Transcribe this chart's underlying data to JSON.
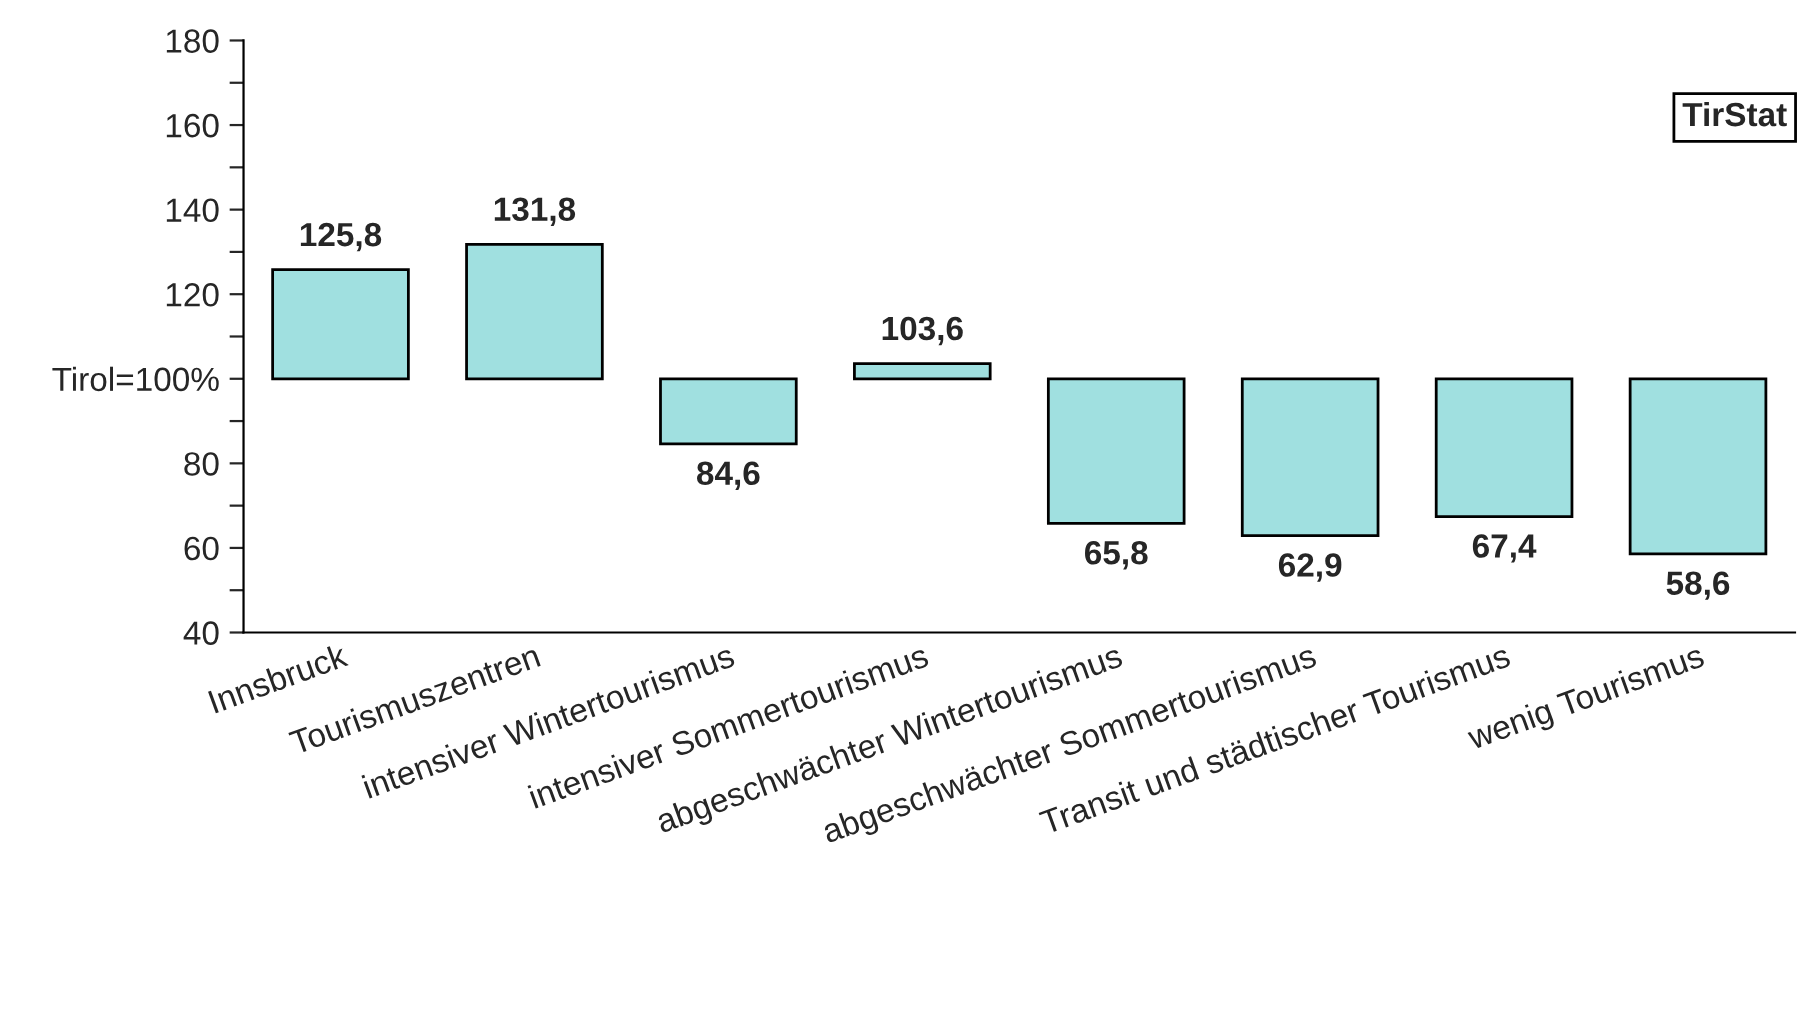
{
  "chart_data": {
    "type": "bar",
    "categories": [
      "Innsbruck",
      "Tourismuszentren",
      "intensiver Wintertourismus",
      "intensiver Sommertourismus",
      "abgeschwächter Wintertourismus",
      "abgeschwächter Sommertourismus",
      "Transit und städtischer Tourismus",
      "wenig Tourismus"
    ],
    "base": [
      100,
      100,
      100,
      100,
      100,
      100,
      100,
      100
    ],
    "values": [
      25.8,
      31.8,
      -15.4,
      3.6,
      -34.2,
      -37.1,
      -32.6,
      -41.4
    ],
    "value_labels": [
      "125,8",
      "131,8",
      "84,6",
      "103,6",
      "65,8",
      "62,9",
      "67,4",
      "58,6"
    ],
    "color": "#a0e0e0",
    "ylim": [
      40,
      180
    ],
    "yticks": [
      40,
      {
        "value": 50,
        "label": null
      },
      60,
      {
        "value": 70,
        "label": null
      },
      80,
      {
        "value": 90,
        "label": null
      },
      {
        "value": 100,
        "label": "Tirol=100%"
      },
      {
        "value": 110,
        "label": null
      },
      120,
      {
        "value": 130,
        "label": null
      },
      140,
      {
        "value": 150,
        "label": null
      },
      160,
      {
        "value": 170,
        "label": null
      },
      180
    ],
    "annotations": [
      "TirStat"
    ],
    "grid": false,
    "legend": false
  }
}
